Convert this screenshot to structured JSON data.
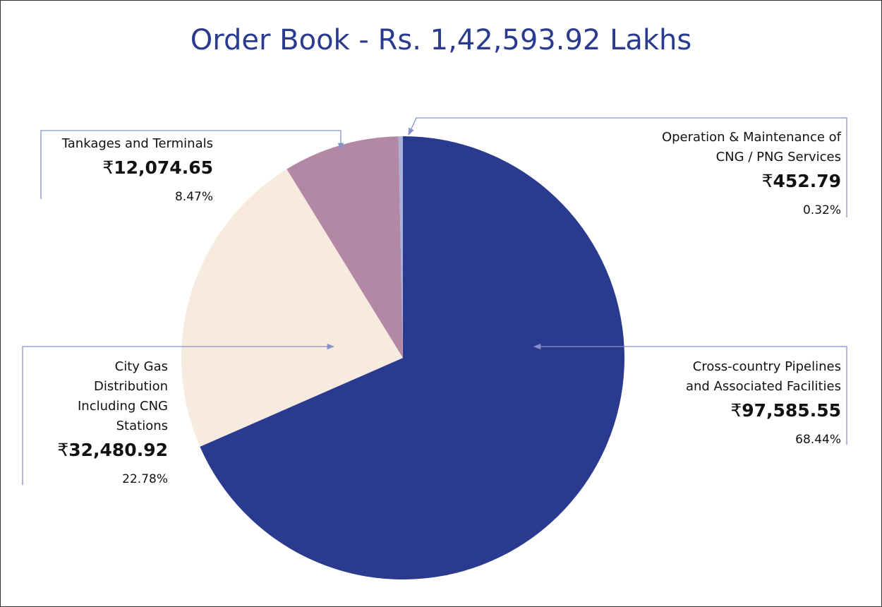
{
  "chart_data": {
    "type": "pie",
    "title": "Order Book - Rs. 1,42,593.92 Lakhs",
    "currency": "₹",
    "categories": [
      "Cross-country Pipelines\nand Associated Facilities",
      "City Gas\nDistribution\nIncluding CNG\nStations",
      "Tankages and Terminals",
      "Operation & Maintenance of\nCNG / PNG Services"
    ],
    "values": [
      97585.55,
      32480.92,
      12074.65,
      452.79
    ],
    "value_labels": [
      "97,585.55",
      "32,480.92",
      "12,074.65",
      "452.79"
    ],
    "percentages": [
      68.44,
      22.78,
      8.47,
      0.32
    ],
    "percentage_labels": [
      "68.44%",
      "22.78%",
      "8.47%",
      "0.32%"
    ],
    "colors": [
      "#2a3b8f",
      "#f7eadf",
      "#b388a4",
      "#a9b0dc"
    ]
  }
}
